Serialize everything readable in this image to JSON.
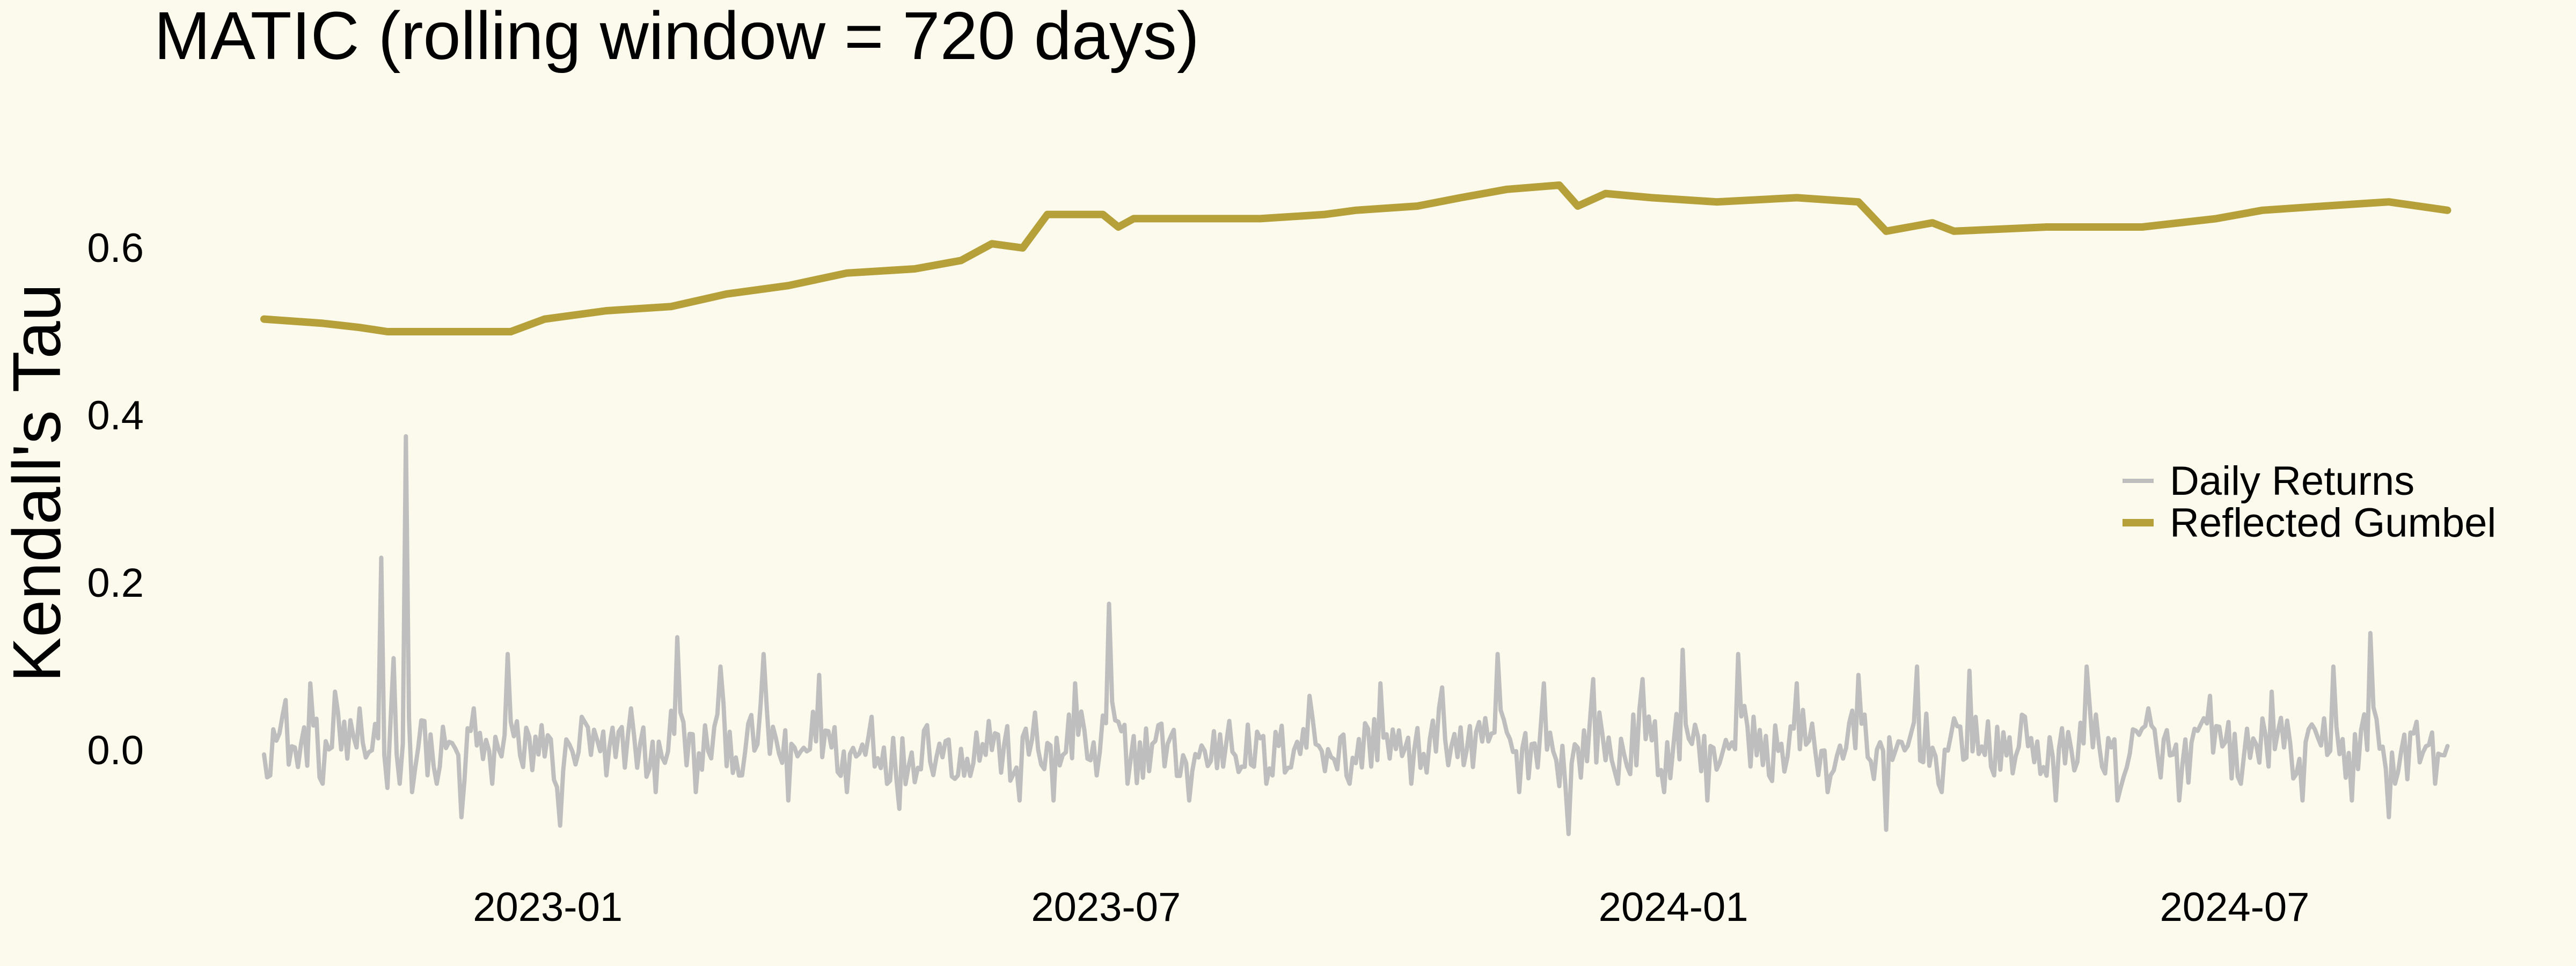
{
  "chart_data": {
    "type": "line",
    "title": "MATIC (rolling window = 720 days)",
    "xlabel": "",
    "ylabel": "Kendall's Tau",
    "x_range": [
      "2022-10-01",
      "2024-09-10"
    ],
    "ylim": [
      -0.12,
      0.72
    ],
    "x_ticks": [
      {
        "value": "2023-01-01",
        "label": "2023-01"
      },
      {
        "value": "2023-07-01",
        "label": "2023-07"
      },
      {
        "value": "2024-01-01",
        "label": "2024-01"
      },
      {
        "value": "2024-07-01",
        "label": "2024-07"
      }
    ],
    "y_ticks": [
      {
        "value": 0.0,
        "label": "0.0"
      },
      {
        "value": 0.2,
        "label": "0.2"
      },
      {
        "value": 0.4,
        "label": "0.4"
      },
      {
        "value": 0.6,
        "label": "0.6"
      }
    ],
    "grid": false,
    "legend_position": "right",
    "series": [
      {
        "name": "Daily Returns",
        "color": "#bebebe",
        "style": "noisy-daily",
        "points": [
          [
            "2022-10-01",
            -0.005
          ],
          [
            "2022-10-04",
            0.025
          ],
          [
            "2022-10-08",
            0.06
          ],
          [
            "2022-10-12",
            -0.02
          ],
          [
            "2022-10-16",
            0.08
          ],
          [
            "2022-10-20",
            -0.04
          ],
          [
            "2022-10-24",
            0.07
          ],
          [
            "2022-10-28",
            -0.01
          ],
          [
            "2022-11-01",
            0.05
          ],
          [
            "2022-11-05",
            0.0
          ],
          [
            "2022-11-08",
            0.23
          ],
          [
            "2022-11-10",
            -0.045
          ],
          [
            "2022-11-12",
            0.11
          ],
          [
            "2022-11-14",
            -0.04
          ],
          [
            "2022-11-16",
            0.375
          ],
          [
            "2022-11-18",
            -0.05
          ],
          [
            "2022-11-22",
            0.035
          ],
          [
            "2022-11-26",
            -0.04
          ],
          [
            "2022-11-30",
            0.01
          ],
          [
            "2022-12-04",
            -0.08
          ],
          [
            "2022-12-08",
            0.05
          ],
          [
            "2022-12-14",
            -0.04
          ],
          [
            "2022-12-19",
            0.115
          ],
          [
            "2022-12-24",
            -0.02
          ],
          [
            "2022-12-30",
            0.03
          ],
          [
            "2023-01-05",
            -0.09
          ],
          [
            "2023-01-12",
            0.04
          ],
          [
            "2023-01-20",
            -0.03
          ],
          [
            "2023-01-28",
            0.05
          ],
          [
            "2023-02-05",
            -0.05
          ],
          [
            "2023-02-12",
            0.135
          ],
          [
            "2023-02-18",
            -0.05
          ],
          [
            "2023-02-26",
            0.1
          ],
          [
            "2023-03-05",
            -0.03
          ],
          [
            "2023-03-12",
            0.115
          ],
          [
            "2023-03-20",
            -0.06
          ],
          [
            "2023-03-30",
            0.09
          ],
          [
            "2023-04-08",
            -0.05
          ],
          [
            "2023-04-16",
            0.04
          ],
          [
            "2023-04-25",
            -0.07
          ],
          [
            "2023-05-04",
            0.03
          ],
          [
            "2023-05-14",
            -0.03
          ],
          [
            "2023-05-24",
            0.035
          ],
          [
            "2023-06-03",
            -0.06
          ],
          [
            "2023-06-08",
            0.045
          ],
          [
            "2023-06-14",
            -0.06
          ],
          [
            "2023-06-21",
            0.08
          ],
          [
            "2023-06-28",
            -0.03
          ],
          [
            "2023-07-02",
            0.175
          ],
          [
            "2023-07-08",
            -0.04
          ],
          [
            "2023-07-18",
            0.03
          ],
          [
            "2023-07-28",
            -0.06
          ],
          [
            "2023-08-10",
            0.035
          ],
          [
            "2023-08-22",
            -0.04
          ],
          [
            "2023-09-05",
            0.065
          ],
          [
            "2023-09-18",
            -0.04
          ],
          [
            "2023-09-28",
            0.08
          ],
          [
            "2023-10-08",
            -0.04
          ],
          [
            "2023-10-18",
            0.075
          ],
          [
            "2023-10-28",
            -0.02
          ],
          [
            "2023-11-05",
            0.115
          ],
          [
            "2023-11-12",
            -0.05
          ],
          [
            "2023-11-20",
            0.08
          ],
          [
            "2023-11-28",
            -0.1
          ],
          [
            "2023-12-06",
            0.085
          ],
          [
            "2023-12-14",
            -0.04
          ],
          [
            "2023-12-22",
            0.085
          ],
          [
            "2023-12-29",
            -0.05
          ],
          [
            "2024-01-04",
            0.12
          ],
          [
            "2024-01-12",
            -0.06
          ],
          [
            "2024-01-22",
            0.115
          ],
          [
            "2024-02-01",
            -0.03
          ],
          [
            "2024-02-10",
            0.08
          ],
          [
            "2024-02-20",
            -0.05
          ],
          [
            "2024-03-01",
            0.09
          ],
          [
            "2024-03-10",
            -0.095
          ],
          [
            "2024-03-20",
            0.1
          ],
          [
            "2024-03-28",
            -0.05
          ],
          [
            "2024-04-06",
            0.095
          ],
          [
            "2024-04-14",
            -0.03
          ],
          [
            "2024-04-24",
            0.04
          ],
          [
            "2024-05-04",
            -0.06
          ],
          [
            "2024-05-14",
            0.1
          ],
          [
            "2024-05-24",
            -0.06
          ],
          [
            "2024-06-03",
            0.05
          ],
          [
            "2024-06-13",
            -0.06
          ],
          [
            "2024-06-23",
            0.065
          ],
          [
            "2024-07-03",
            -0.04
          ],
          [
            "2024-07-13",
            0.07
          ],
          [
            "2024-07-23",
            -0.06
          ],
          [
            "2024-08-02",
            0.1
          ],
          [
            "2024-08-08",
            -0.06
          ],
          [
            "2024-08-14",
            0.14
          ],
          [
            "2024-08-20",
            -0.08
          ],
          [
            "2024-08-28",
            0.02
          ],
          [
            "2024-09-04",
            -0.04
          ],
          [
            "2024-09-08",
            0.005
          ]
        ]
      },
      {
        "name": "Reflected Gumbel",
        "color": "#b5a03a",
        "style": "smooth",
        "points": [
          [
            "2022-10-01",
            0.515
          ],
          [
            "2022-10-20",
            0.51
          ],
          [
            "2022-11-01",
            0.505
          ],
          [
            "2022-11-10",
            0.5
          ],
          [
            "2022-11-30",
            0.5
          ],
          [
            "2022-12-20",
            0.5
          ],
          [
            "2022-12-31",
            0.515
          ],
          [
            "2023-01-20",
            0.525
          ],
          [
            "2023-02-10",
            0.53
          ],
          [
            "2023-02-28",
            0.545
          ],
          [
            "2023-03-20",
            0.555
          ],
          [
            "2023-04-08",
            0.57
          ],
          [
            "2023-04-30",
            0.575
          ],
          [
            "2023-05-15",
            0.585
          ],
          [
            "2023-05-25",
            0.605
          ],
          [
            "2023-06-04",
            0.6
          ],
          [
            "2023-06-12",
            0.64
          ],
          [
            "2023-06-30",
            0.64
          ],
          [
            "2023-07-05",
            0.625
          ],
          [
            "2023-07-10",
            0.635
          ],
          [
            "2023-08-20",
            0.635
          ],
          [
            "2023-09-10",
            0.64
          ],
          [
            "2023-09-20",
            0.645
          ],
          [
            "2023-10-10",
            0.65
          ],
          [
            "2023-10-24",
            0.66
          ],
          [
            "2023-11-08",
            0.67
          ],
          [
            "2023-11-25",
            0.675
          ],
          [
            "2023-12-01",
            0.65
          ],
          [
            "2023-12-10",
            0.665
          ],
          [
            "2023-12-25",
            0.66
          ],
          [
            "2024-01-15",
            0.655
          ],
          [
            "2024-02-10",
            0.66
          ],
          [
            "2024-03-01",
            0.655
          ],
          [
            "2024-03-10",
            0.62
          ],
          [
            "2024-03-25",
            0.63
          ],
          [
            "2024-04-01",
            0.62
          ],
          [
            "2024-05-01",
            0.625
          ],
          [
            "2024-06-01",
            0.625
          ],
          [
            "2024-06-25",
            0.635
          ],
          [
            "2024-07-10",
            0.645
          ],
          [
            "2024-07-30",
            0.65
          ],
          [
            "2024-08-20",
            0.655
          ],
          [
            "2024-09-08",
            0.645
          ]
        ]
      }
    ]
  }
}
